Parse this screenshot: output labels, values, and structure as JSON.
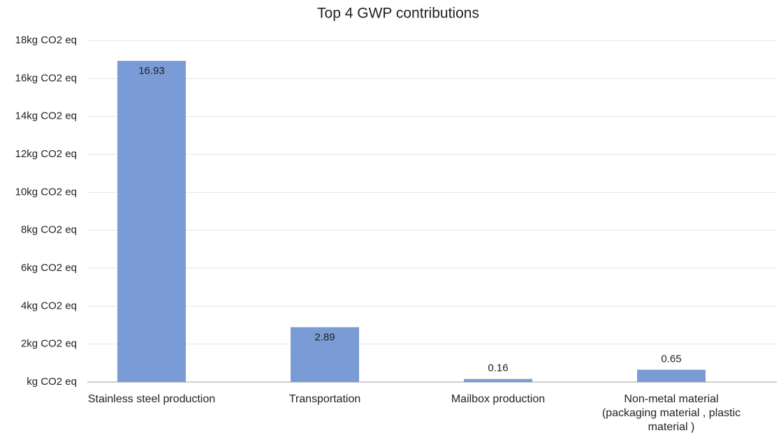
{
  "chart_data": {
    "type": "bar",
    "title": "Top 4 GWP contributions",
    "categories": [
      "Stainless steel production",
      "Transportation",
      "Mailbox production",
      "Non-metal material (packaging material , plastic material )"
    ],
    "values": [
      16.93,
      2.89,
      0.16,
      0.65
    ],
    "color": "#7b9bd6",
    "ylim": [
      0,
      18
    ],
    "yticks": [
      {
        "value": 0,
        "label": "kg CO2 eq"
      },
      {
        "value": 2,
        "label": "2kg CO2 eq"
      },
      {
        "value": 4,
        "label": "4kg CO2 eq"
      },
      {
        "value": 6,
        "label": "6kg CO2 eq"
      },
      {
        "value": 8,
        "label": "8kg CO2 eq"
      },
      {
        "value": 10,
        "label": "10kg CO2 eq"
      },
      {
        "value": 12,
        "label": "12kg CO2 eq"
      },
      {
        "value": 14,
        "label": "14kg CO2 eq"
      },
      {
        "value": 16,
        "label": "16kg CO2 eq"
      },
      {
        "value": 18,
        "label": "18kg CO2 eq"
      }
    ],
    "grid": true
  }
}
